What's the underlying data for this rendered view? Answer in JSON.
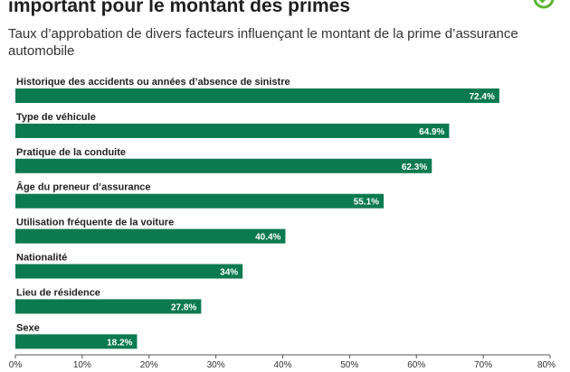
{
  "header": {
    "title": "important pour le montant des primes",
    "subtitle": "Taux d’approbation de divers facteurs influençant le montant de la prime d’assurance automobile"
  },
  "brand": {
    "icon": "check-circle-icon",
    "color": "#5bb531"
  },
  "colors": {
    "bar": "#0c7a4f",
    "axis": "#555555"
  },
  "chart_data": {
    "type": "bar",
    "orientation": "horizontal",
    "categories": [
      "Historique des accidents ou années d’absence de sinistre",
      "Type de véhicule",
      "Pratique de la conduite",
      "Âge du preneur d’assurance",
      "Utilisation fréquente de la voiture",
      "Nationalité",
      "Lieu de résidence",
      "Sexe"
    ],
    "values": [
      72.4,
      64.9,
      62.3,
      55.1,
      40.4,
      34,
      27.8,
      18.2
    ],
    "value_labels": [
      "72.4%",
      "64.9%",
      "62.3%",
      "55.1%",
      "40.4%",
      "34%",
      "27.8%",
      "18.2%"
    ],
    "xlim": [
      0,
      80
    ],
    "xticks": [
      0,
      10,
      20,
      30,
      40,
      50,
      60,
      70,
      80
    ],
    "xtick_labels": [
      "0%",
      "10%",
      "20%",
      "30%",
      "40%",
      "50%",
      "60%",
      "70%",
      "80%"
    ],
    "grid": false,
    "legend": "none"
  }
}
